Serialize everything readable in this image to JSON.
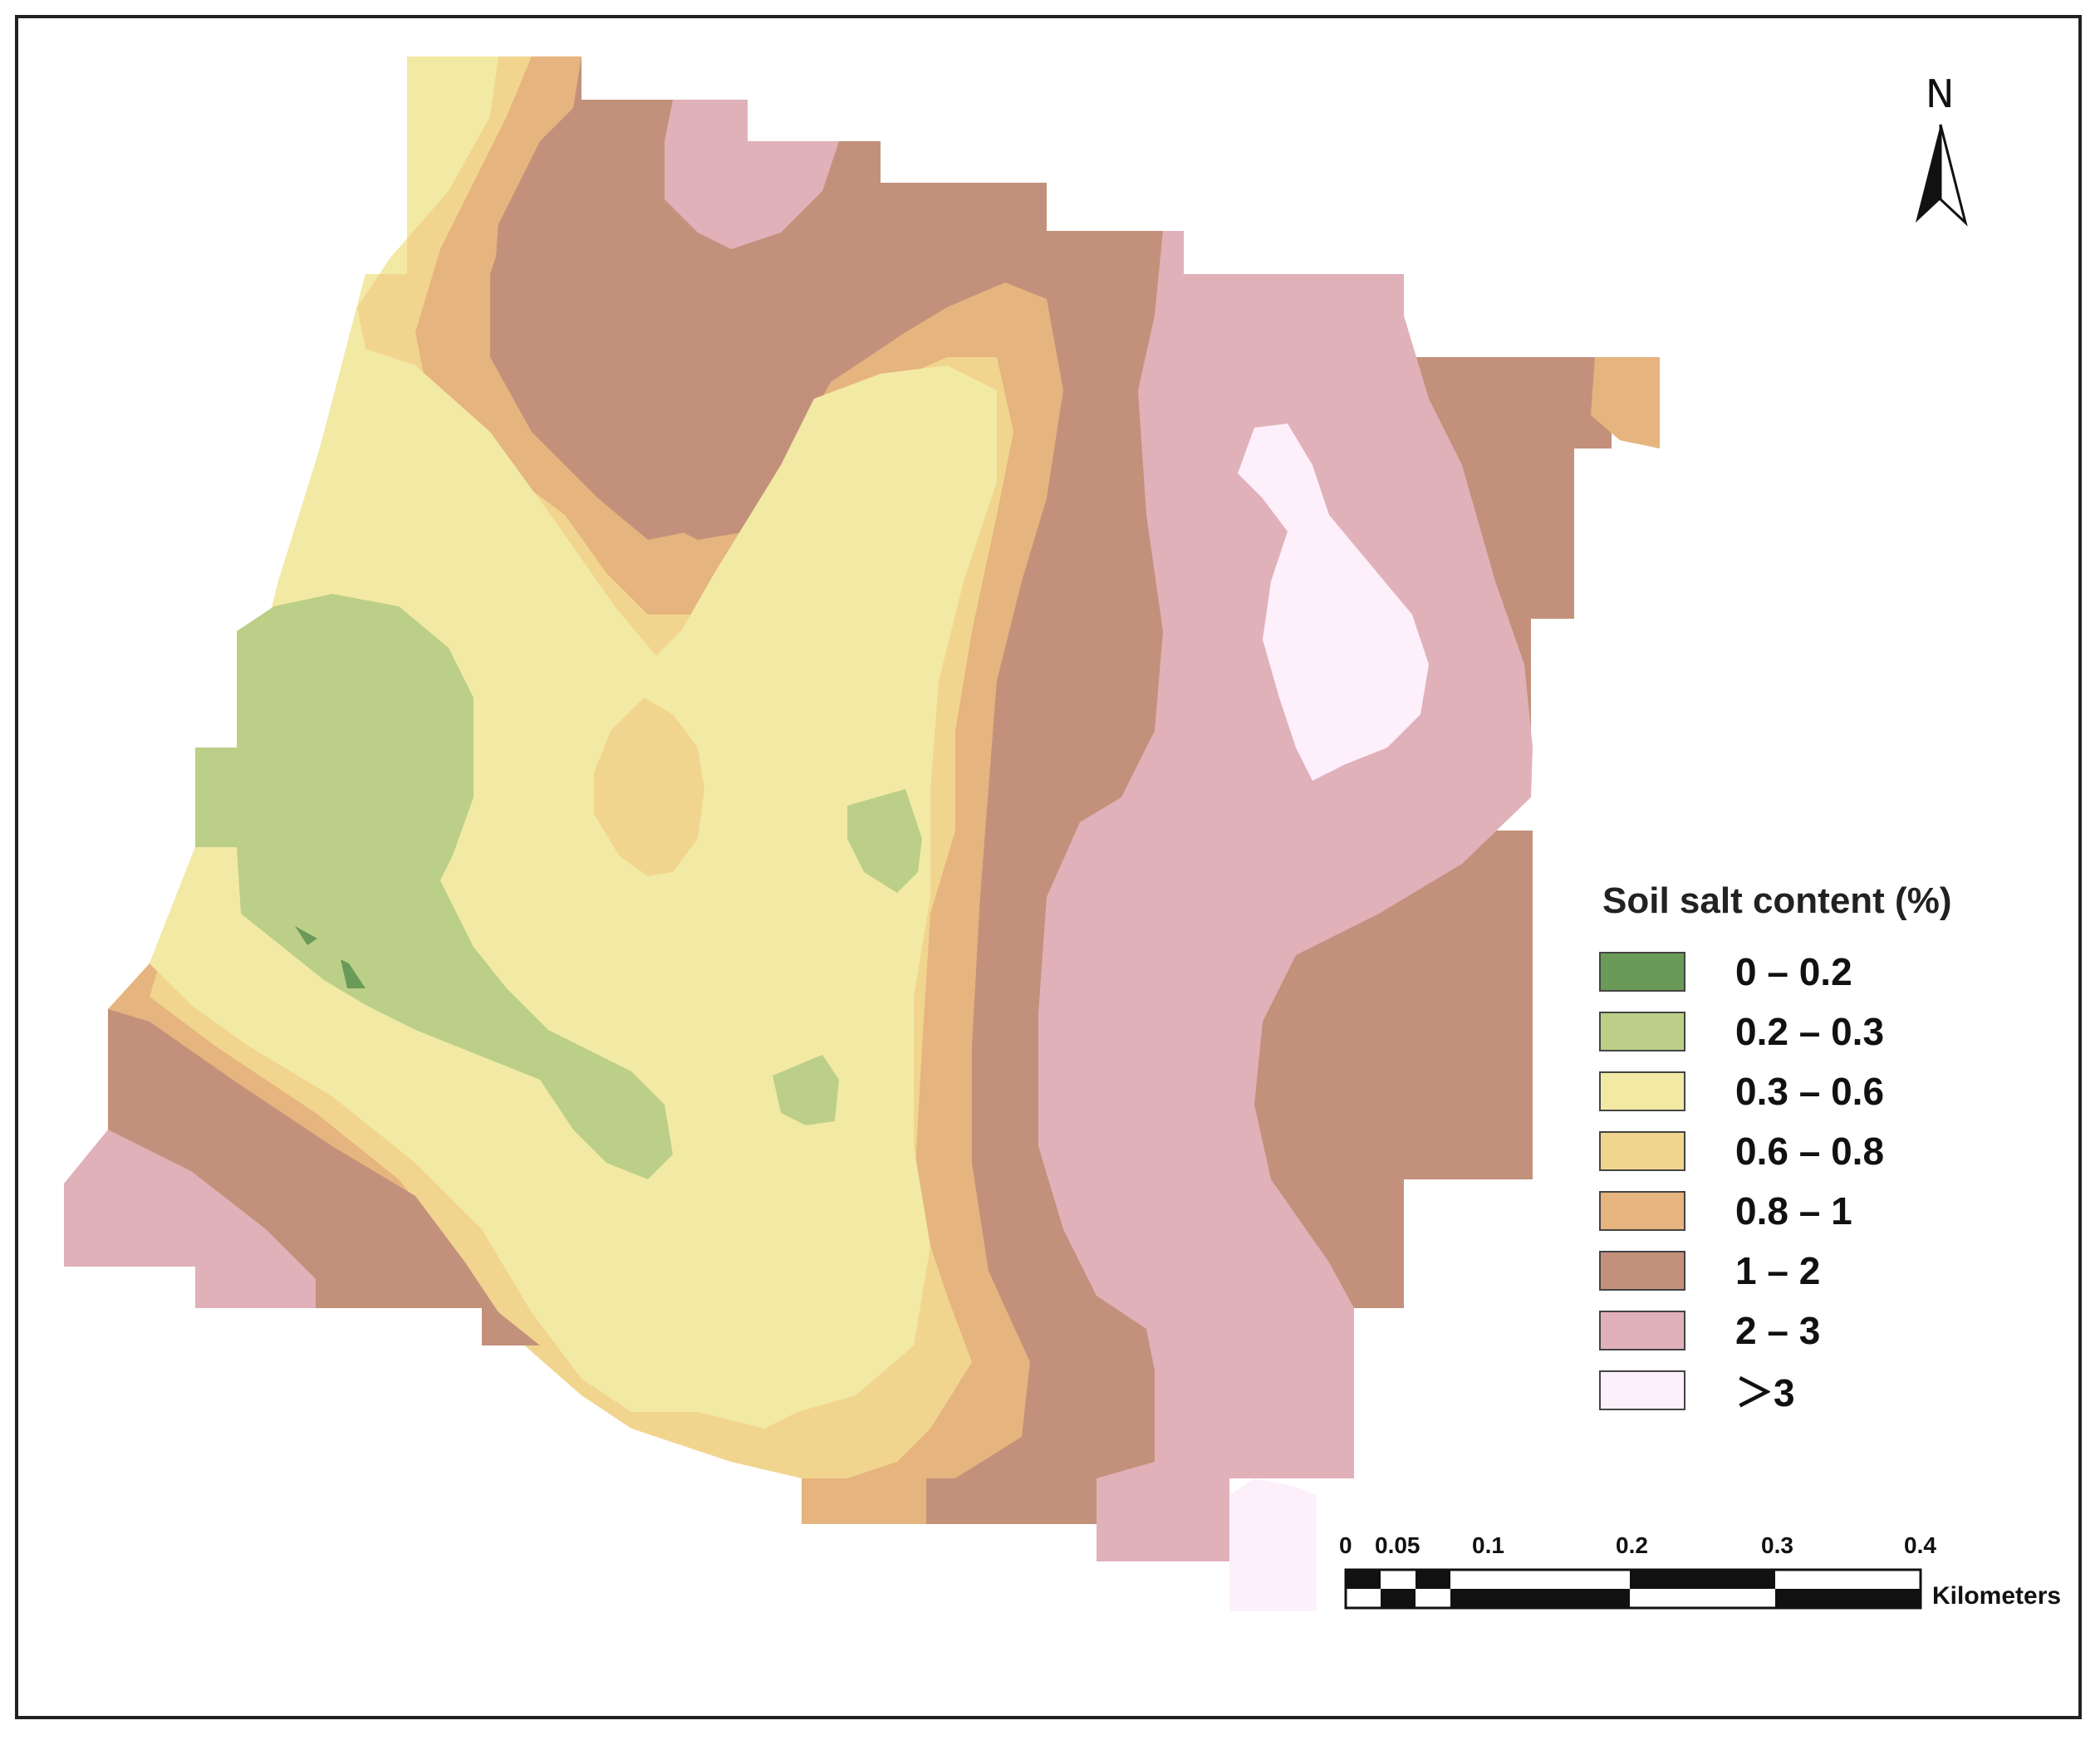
{
  "map": {
    "legend": {
      "title": "Soil salt content (%)",
      "classes": [
        {
          "label": "0 – 0.2",
          "color": "#6a9a58"
        },
        {
          "label": "0.2 – 0.3",
          "color": "#bccf88"
        },
        {
          "label": "0.3 – 0.6",
          "color": "#f2eaa4"
        },
        {
          "label": "0.6 – 0.8",
          "color": "#f1d58f"
        },
        {
          "label": "0.8 – 1",
          "color": "#e6b47e"
        },
        {
          "label": "1 – 2",
          "color": "#c3917b"
        },
        {
          "label": "2 – 3",
          "color": "#e1b1ba"
        },
        {
          "label": "＞3",
          "color": "#fdf0fb"
        }
      ]
    },
    "north_arrow": {
      "label": "N"
    },
    "scale_bar": {
      "ticks": [
        "0",
        "0.05",
        "0.1",
        "0.2",
        "0.3",
        "0.4"
      ],
      "unit": "Kilometers"
    }
  }
}
